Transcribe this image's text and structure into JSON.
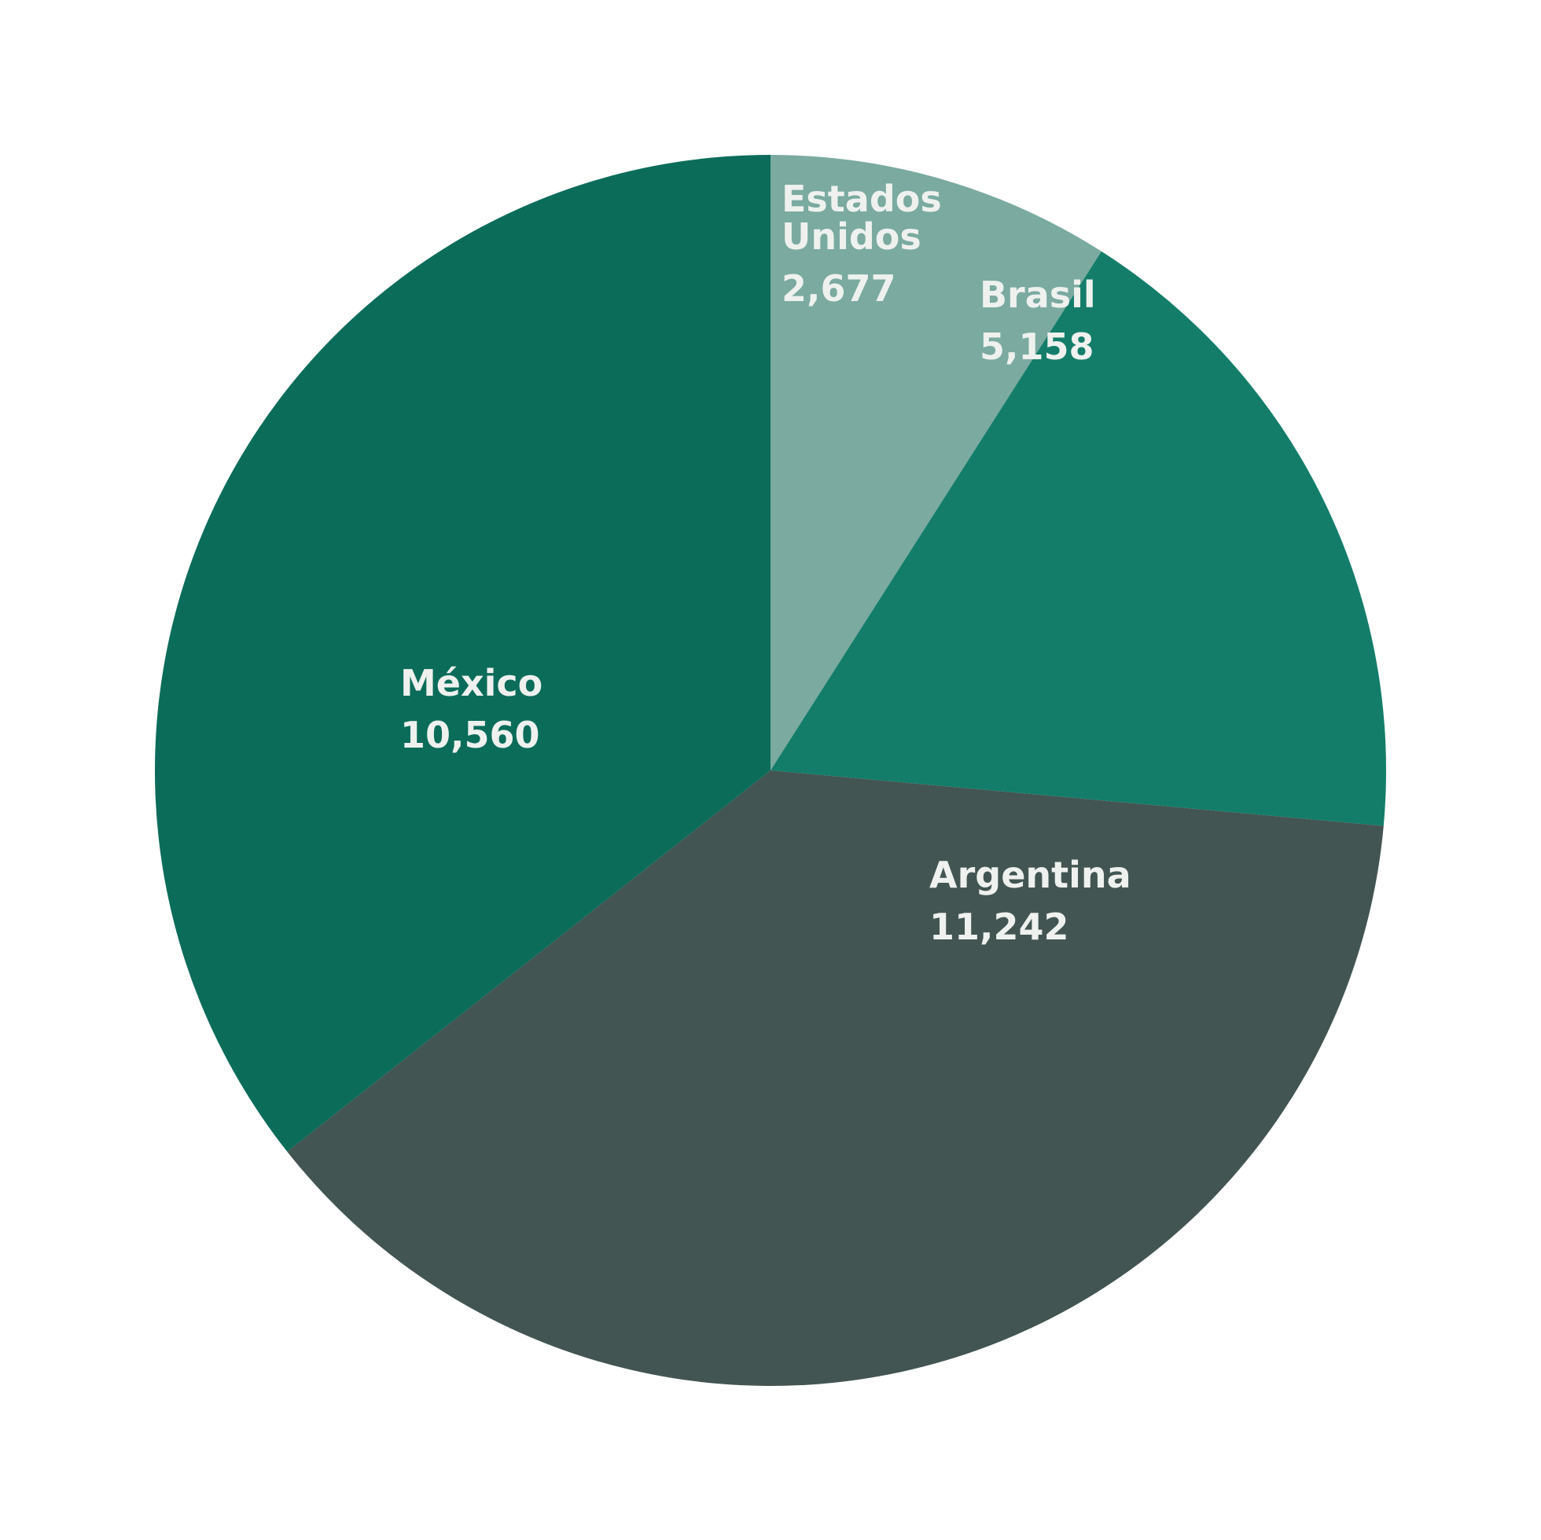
{
  "chart_data": {
    "type": "pie",
    "categories": [
      "Estados Unidos",
      "Brasil",
      "Argentina",
      "México"
    ],
    "values": [
      2677,
      5158,
      11242,
      10560
    ],
    "value_labels": [
      "2,677",
      "5,158",
      "11,242",
      "10,560"
    ],
    "colors": [
      "#7aaaa0",
      "#137d6a",
      "#425552",
      "#0b6c5a"
    ]
  }
}
